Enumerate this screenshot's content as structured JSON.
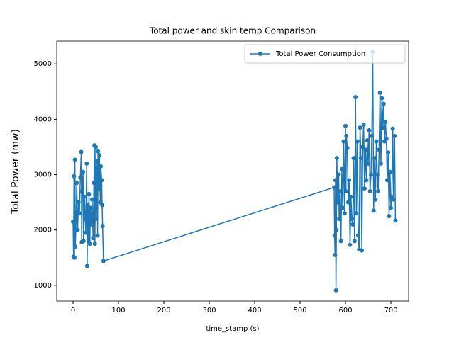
{
  "chart_data": {
    "type": "line",
    "title": "Total power and skin temp Comparison",
    "x_label": "time_stamp (s)",
    "y_label": "Total Power (mw)",
    "xlim": [
      -36,
      739
    ],
    "ylim": [
      717,
      5412
    ],
    "xticks": [
      0,
      100,
      200,
      300,
      400,
      500,
      600,
      700
    ],
    "yticks": [
      1000,
      2000,
      3000,
      4000,
      5000
    ],
    "legend": "upper right",
    "x": [
      0,
      1,
      2,
      3,
      4,
      5,
      6,
      7,
      8,
      10,
      12,
      14,
      16,
      18,
      19,
      20,
      22,
      23,
      25,
      27,
      28,
      30,
      31,
      32,
      34,
      35,
      37,
      38,
      40,
      42,
      44,
      46,
      47,
      48,
      50,
      51,
      53,
      54,
      55,
      57,
      58,
      60,
      61,
      63,
      64,
      65,
      67,
      575,
      576,
      577,
      578,
      579,
      580,
      581,
      582,
      583,
      585,
      586,
      588,
      590,
      592,
      594,
      596,
      598,
      600,
      601,
      602,
      604,
      606,
      608,
      610,
      612,
      614,
      616,
      618,
      620,
      622,
      624,
      626,
      628,
      630,
      632,
      634,
      636,
      638,
      640,
      642,
      644,
      646,
      648,
      650,
      652,
      654,
      656,
      658,
      660,
      662,
      664,
      666,
      668,
      670,
      672,
      674,
      676,
      678,
      680,
      682,
      684,
      686,
      688,
      690,
      692,
      694,
      696,
      698,
      700,
      702,
      704,
      706,
      708,
      710
    ],
    "series": [
      {
        "name": "Total Power Consumption",
        "color": "#1f77b4",
        "values": [
          2150,
          1520,
          2970,
          1500,
          3270,
          1700,
          2000,
          2300,
          2850,
          2000,
          2500,
          2300,
          2950,
          3410,
          1780,
          2700,
          3050,
          1800,
          2600,
          2200,
          1950,
          3200,
          1350,
          2450,
          1800,
          2650,
          1750,
          2400,
          2100,
          2550,
          1850,
          2850,
          3530,
          1750,
          3500,
          2200,
          3250,
          1900,
          3420,
          2750,
          3350,
          2500,
          3150,
          2900,
          2450,
          2070,
          1440,
          2770,
          1900,
          1550,
          2900,
          910,
          2000,
          3300,
          2800,
          2500,
          3000,
          2200,
          2700,
          1800,
          3100,
          2400,
          3600,
          2300,
          3880,
          2700,
          3700,
          3480,
          2500,
          2900,
          1730,
          2600,
          2200,
          2100,
          3300,
          1800,
          4400,
          2300,
          3600,
          1900,
          1650,
          3850,
          3300,
          1630,
          3500,
          3900,
          2750,
          3450,
          2900,
          3620,
          3200,
          3800,
          2700,
          3000,
          3700,
          5220,
          2350,
          3300,
          2550,
          3600,
          3000,
          2700,
          3450,
          4480,
          3200,
          4380,
          3850,
          4280,
          3600,
          3950,
          3650,
          2900,
          3400,
          2250,
          3050,
          2400,
          2600,
          3830,
          2550,
          3700,
          2170
        ]
      }
    ]
  }
}
